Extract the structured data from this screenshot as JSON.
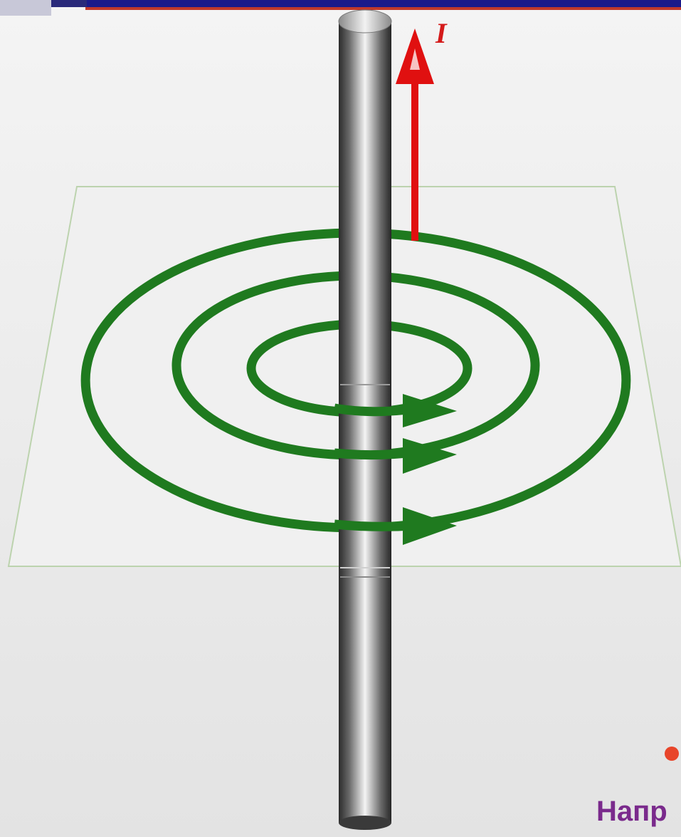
{
  "diagram": {
    "current_label": "I",
    "caption": "Напр"
  },
  "colors": {
    "field_lines": "#1f7a1f",
    "current_arrow": "#e01010",
    "bullet": "#e8452a",
    "caption": "#7a2a8c",
    "top_bar": "#1a1a8a",
    "top_bar_accent": "#c0392b"
  },
  "icons": {
    "current_arrow": "arrow-up-icon",
    "field_arrow": "arrow-right-icon",
    "bullet": "bullet-dot-icon"
  }
}
